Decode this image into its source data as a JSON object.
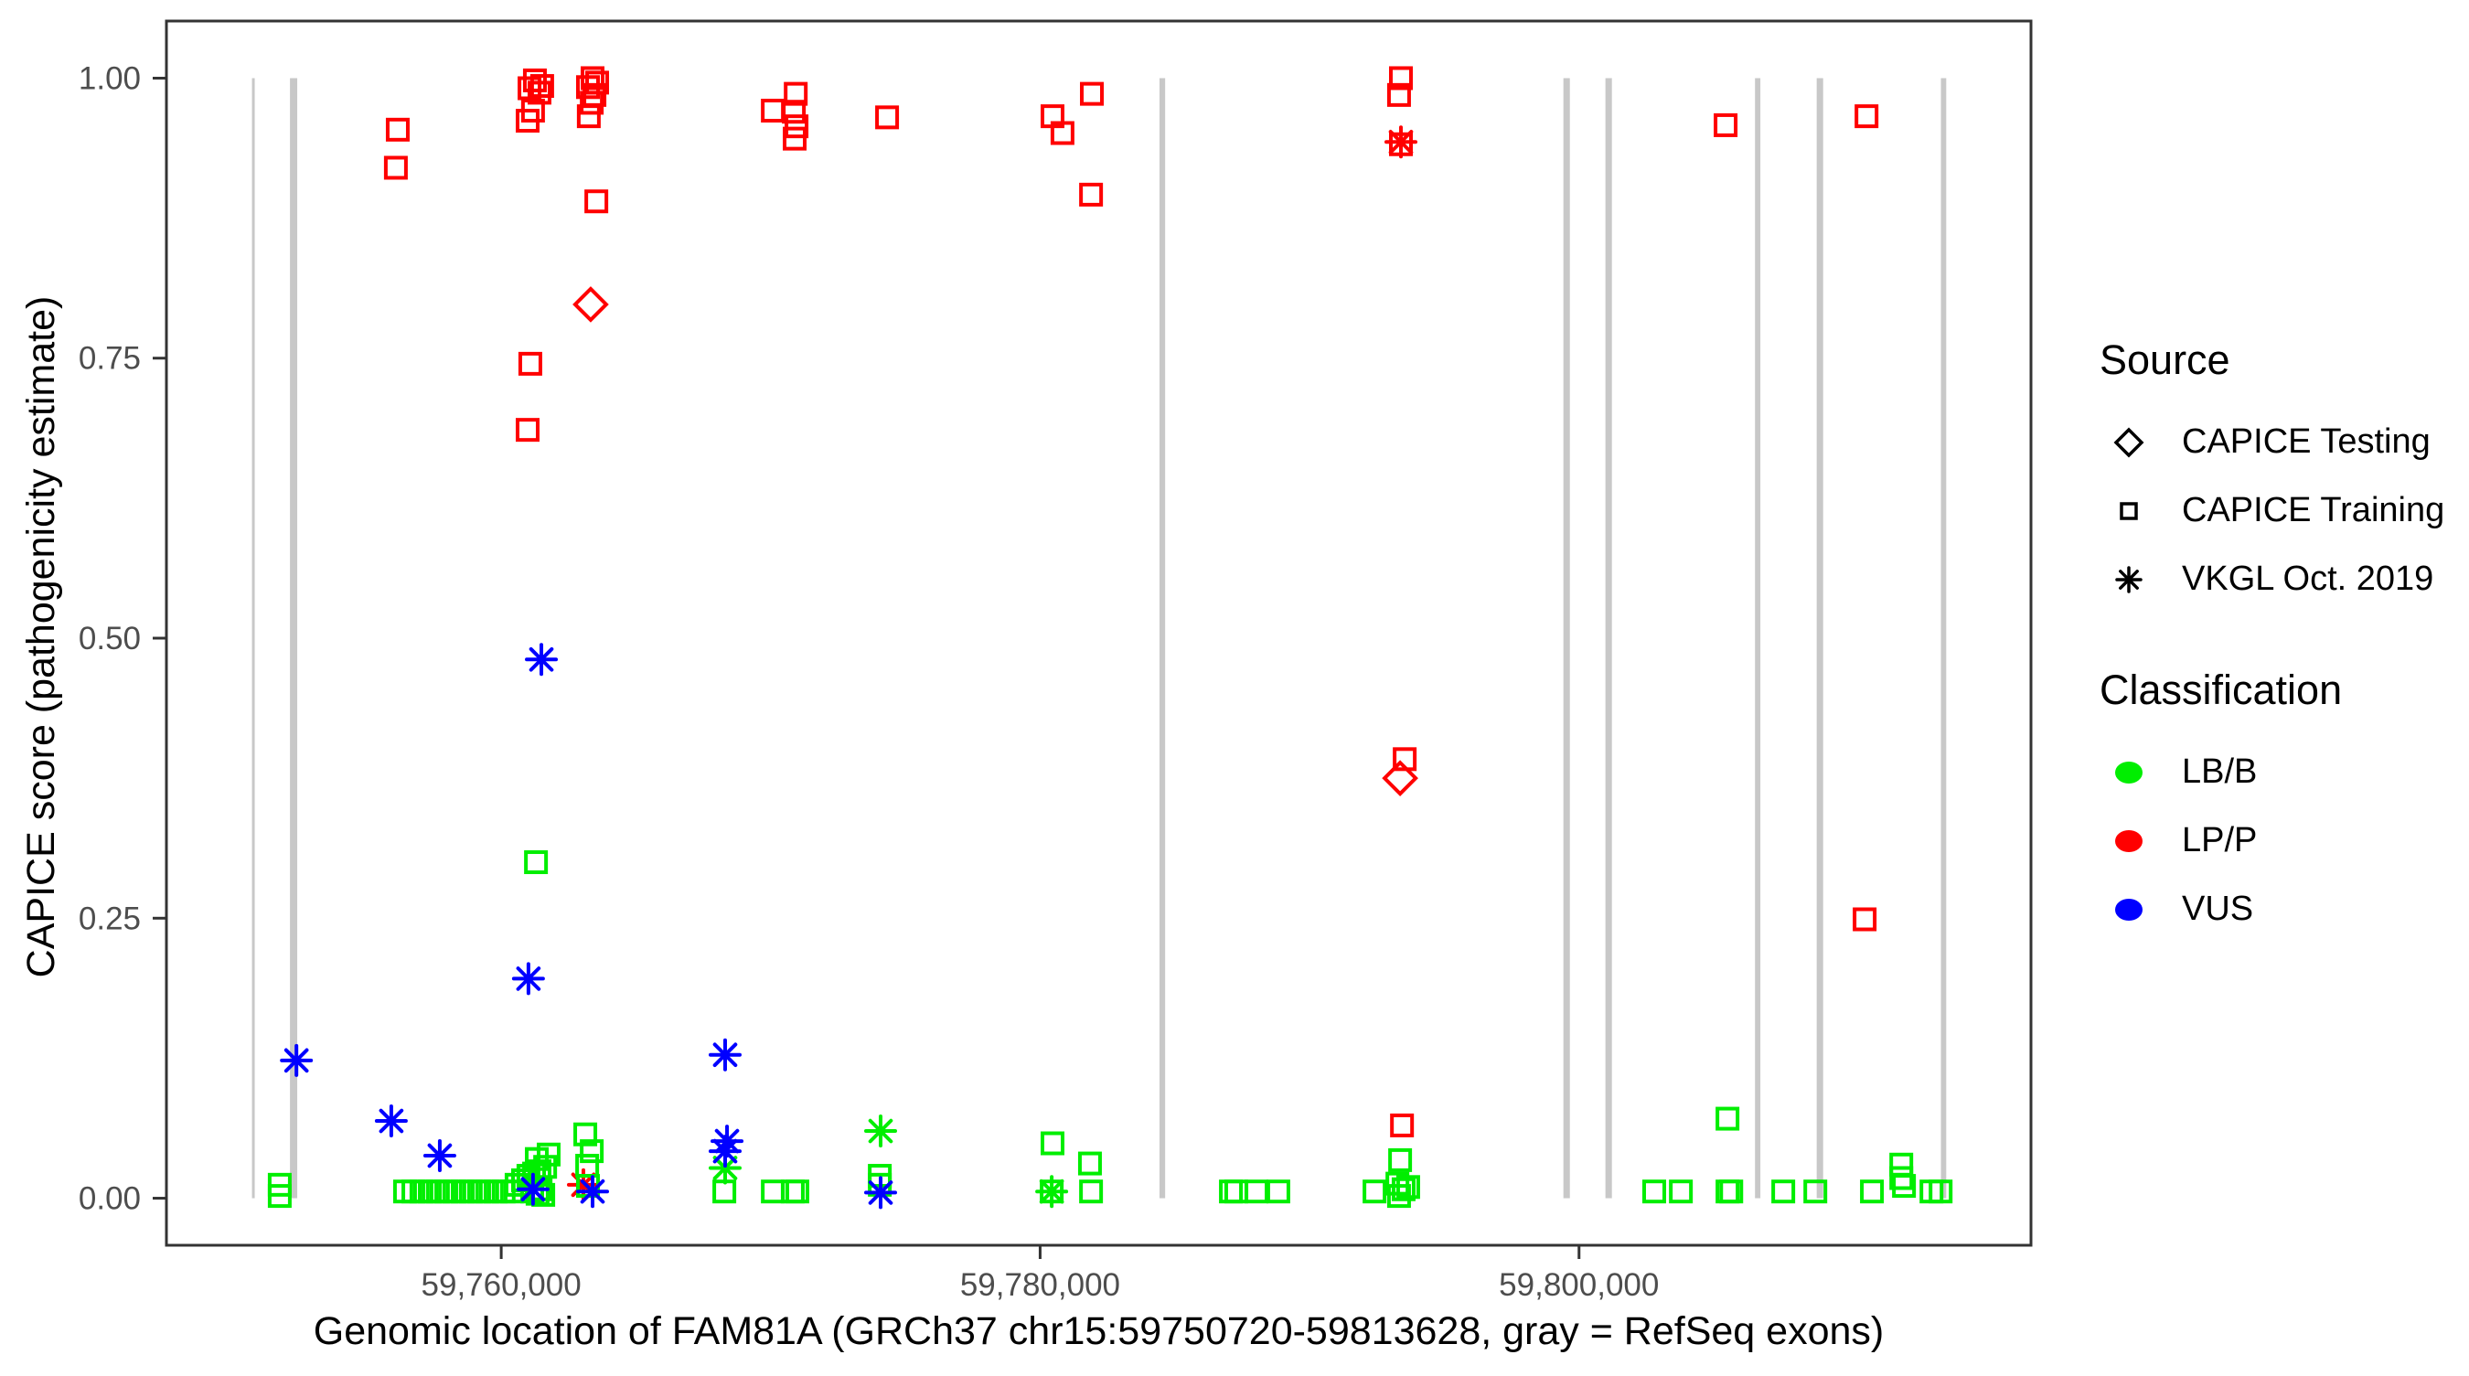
{
  "figure": {
    "xlabel": "Genomic location of FAM81A (GRCh37 chr15:59750720-59813628, gray = RefSeq exons)",
    "ylabel": "CAPICE score (pathogenicity estimate)"
  },
  "legend": {
    "source_title": "Source",
    "source_items": [
      {
        "label": "CAPICE Testing",
        "shape": "diamond",
        "code": "D"
      },
      {
        "label": "CAPICE Training",
        "shape": "square",
        "code": "T"
      },
      {
        "label": "VKGL Oct. 2019",
        "shape": "asterisk",
        "code": "V"
      }
    ],
    "classification_title": "Classification",
    "classification_items": [
      {
        "label": "LB/B",
        "code": "B",
        "color": "#00EE00"
      },
      {
        "label": "LP/P",
        "code": "P",
        "color": "#FF0000"
      },
      {
        "label": "VUS",
        "code": "U",
        "color": "#0000FF"
      }
    ]
  },
  "chart_data": {
    "type": "scatter",
    "title": "",
    "xlabel": "Genomic location of FAM81A (GRCh37 chr15:59750720-59813628, gray = RefSeq exons)",
    "ylabel": "CAPICE score (pathogenicity estimate)",
    "x_axis": {
      "range": [
        59747575,
        59816773
      ],
      "ticks": [
        59760000,
        59780000,
        59800000
      ],
      "tick_labels": [
        "59,760,000",
        "59,780,000",
        "59,800,000"
      ]
    },
    "y_axis": {
      "range": [
        -0.042,
        1.051
      ],
      "ticks": [
        0,
        0.25,
        0.5,
        0.75,
        1
      ],
      "tick_labels": [
        "0.00",
        "0.25",
        "0.50",
        "0.75",
        "1.00"
      ]
    },
    "grid": false,
    "legend_position": "right",
    "exon_color": "#C8C8C8",
    "exon_note": "gray vertical bars = RefSeq exons, drawn spanning score 0 to 1",
    "exons_bp": [
      [
        59750750,
        59750850
      ],
      [
        59752160,
        59752430
      ],
      [
        59784430,
        59784640
      ],
      [
        59799420,
        59799660
      ],
      [
        59800980,
        59801220
      ],
      [
        59806530,
        59806730
      ],
      [
        59808820,
        59809060
      ],
      [
        59813430,
        59813628
      ]
    ],
    "colors": {
      "B": "#00EE00",
      "P": "#FF0000",
      "U": "#0000FF"
    },
    "source_codes": {
      "T": "CAPICE Training",
      "D": "CAPICE Testing",
      "V": "VKGL Oct. 2019"
    },
    "classification_codes": {
      "B": "LB/B",
      "P": "LP/P",
      "U": "VUS"
    },
    "point_columns": [
      "genomic_position_bp",
      "capice_score",
      "source",
      "classification"
    ],
    "points": [
      [
        59756090,
        0.92,
        "T",
        "P"
      ],
      [
        59756160,
        0.954,
        "T",
        "P"
      ],
      [
        59760980,
        0.962,
        "T",
        "P"
      ],
      [
        59760980,
        0.686,
        "T",
        "P"
      ],
      [
        59761050,
        0.991,
        "T",
        "P"
      ],
      [
        59761080,
        0.745,
        "T",
        "P"
      ],
      [
        59761180,
        0.971,
        "T",
        "P"
      ],
      [
        59761250,
        0.998,
        "T",
        "P"
      ],
      [
        59761420,
        0.987,
        "T",
        "P"
      ],
      [
        59761520,
        0.993,
        "T",
        "P"
      ],
      [
        59763220,
        0.992,
        "T",
        "P"
      ],
      [
        59763250,
        0.966,
        "T",
        "P"
      ],
      [
        59763360,
        0.978,
        "T",
        "P"
      ],
      [
        59763390,
        1.0,
        "T",
        "P"
      ],
      [
        59763460,
        0.985,
        "T",
        "P"
      ],
      [
        59763530,
        0.89,
        "T",
        "P"
      ],
      [
        59763560,
        0.996,
        "T",
        "P"
      ],
      [
        59770080,
        0.971,
        "T",
        "P"
      ],
      [
        59770860,
        0.97,
        "T",
        "P"
      ],
      [
        59770890,
        0.946,
        "T",
        "P"
      ],
      [
        59770930,
        0.986,
        "T",
        "P"
      ],
      [
        59770960,
        0.957,
        "T",
        "P"
      ],
      [
        59774320,
        0.965,
        "T",
        "P"
      ],
      [
        59780460,
        0.966,
        "T",
        "P"
      ],
      [
        59780830,
        0.951,
        "T",
        "P"
      ],
      [
        59781890,
        0.896,
        "T",
        "P"
      ],
      [
        59781920,
        0.986,
        "T",
        "P"
      ],
      [
        59793320,
        0.985,
        "T",
        "P"
      ],
      [
        59793390,
        1.0,
        "T",
        "P"
      ],
      [
        59793390,
        0.941,
        "T",
        "P"
      ],
      [
        59793530,
        0.392,
        "T",
        "P"
      ],
      [
        59793430,
        0.065,
        "T",
        "P"
      ],
      [
        59805440,
        0.958,
        "T",
        "P"
      ],
      [
        59810600,
        0.249,
        "T",
        "P"
      ],
      [
        59810670,
        0.966,
        "T",
        "P"
      ],
      [
        59763320,
        0.798,
        "D",
        "P"
      ],
      [
        59793360,
        0.375,
        "D",
        "P"
      ],
      [
        59763050,
        0.012,
        "V",
        "P"
      ],
      [
        59793390,
        0.943,
        "V",
        "P"
      ],
      [
        59751780,
        0.012,
        "T",
        "B"
      ],
      [
        59751780,
        0.002,
        "T",
        "B"
      ],
      [
        59756430,
        0.006,
        "T",
        "B"
      ],
      [
        59756740,
        0.006,
        "T",
        "B"
      ],
      [
        59757040,
        0.006,
        "T",
        "B"
      ],
      [
        59757350,
        0.006,
        "T",
        "B"
      ],
      [
        59757650,
        0.006,
        "T",
        "B"
      ],
      [
        59757960,
        0.006,
        "T",
        "B"
      ],
      [
        59758260,
        0.006,
        "T",
        "B"
      ],
      [
        59758570,
        0.006,
        "T",
        "B"
      ],
      [
        59758870,
        0.006,
        "T",
        "B"
      ],
      [
        59759180,
        0.006,
        "T",
        "B"
      ],
      [
        59759480,
        0.006,
        "T",
        "B"
      ],
      [
        59759790,
        0.006,
        "T",
        "B"
      ],
      [
        59760090,
        0.006,
        "T",
        "B"
      ],
      [
        59760400,
        0.006,
        "T",
        "B"
      ],
      [
        59760570,
        0.012,
        "T",
        "B"
      ],
      [
        59760810,
        0.016,
        "T",
        "B"
      ],
      [
        59761010,
        0.02,
        "T",
        "B"
      ],
      [
        59761150,
        0.006,
        "T",
        "B"
      ],
      [
        59761220,
        0.022,
        "T",
        "B"
      ],
      [
        59761290,
        0.3,
        "T",
        "B"
      ],
      [
        59761320,
        0.035,
        "T",
        "B"
      ],
      [
        59761350,
        0.004,
        "T",
        "B"
      ],
      [
        59761420,
        0.024,
        "T",
        "B"
      ],
      [
        59761460,
        0.008,
        "T",
        "B"
      ],
      [
        59761560,
        0.003,
        "T",
        "B"
      ],
      [
        59761630,
        0.028,
        "T",
        "B"
      ],
      [
        59761760,
        0.039,
        "T",
        "B"
      ],
      [
        59763120,
        0.057,
        "T",
        "B"
      ],
      [
        59763190,
        0.029,
        "T",
        "B"
      ],
      [
        59763220,
        0.011,
        "T",
        "B"
      ],
      [
        59763360,
        0.042,
        "T",
        "B"
      ],
      [
        59768280,
        0.006,
        "T",
        "B"
      ],
      [
        59770080,
        0.006,
        "T",
        "B"
      ],
      [
        59770820,
        0.006,
        "T",
        "B"
      ],
      [
        59770990,
        0.006,
        "T",
        "B"
      ],
      [
        59774050,
        0.02,
        "T",
        "B"
      ],
      [
        59774050,
        0.012,
        "T",
        "B"
      ],
      [
        59780430,
        0.006,
        "T",
        "B"
      ],
      [
        59780460,
        0.049,
        "T",
        "B"
      ],
      [
        59781850,
        0.031,
        "T",
        "B"
      ],
      [
        59781890,
        0.006,
        "T",
        "B"
      ],
      [
        59787080,
        0.006,
        "T",
        "B"
      ],
      [
        59787280,
        0.006,
        "T",
        "B"
      ],
      [
        59788030,
        0.006,
        "T",
        "B"
      ],
      [
        59788840,
        0.006,
        "T",
        "B"
      ],
      [
        59792410,
        0.006,
        "T",
        "B"
      ],
      [
        59793260,
        0.013,
        "T",
        "B"
      ],
      [
        59793320,
        0.002,
        "T",
        "B"
      ],
      [
        59793360,
        0.034,
        "T",
        "B"
      ],
      [
        59793490,
        0.008,
        "T",
        "B"
      ],
      [
        59793660,
        0.01,
        "T",
        "B"
      ],
      [
        59802790,
        0.006,
        "T",
        "B"
      ],
      [
        59803780,
        0.006,
        "T",
        "B"
      ],
      [
        59805510,
        0.071,
        "T",
        "B"
      ],
      [
        59805510,
        0.006,
        "T",
        "B"
      ],
      [
        59805650,
        0.006,
        "T",
        "B"
      ],
      [
        59807580,
        0.006,
        "T",
        "B"
      ],
      [
        59808770,
        0.006,
        "T",
        "B"
      ],
      [
        59810870,
        0.006,
        "T",
        "B"
      ],
      [
        59811960,
        0.03,
        "T",
        "B"
      ],
      [
        59811960,
        0.018,
        "T",
        "B"
      ],
      [
        59812060,
        0.011,
        "T",
        "B"
      ],
      [
        59813080,
        0.006,
        "T",
        "B"
      ],
      [
        59813420,
        0.006,
        "T",
        "B"
      ],
      [
        59768310,
        0.027,
        "V",
        "B"
      ],
      [
        59774080,
        0.06,
        "V",
        "B"
      ],
      [
        59780430,
        0.006,
        "V",
        "B"
      ],
      [
        59752400,
        0.123,
        "V",
        "U"
      ],
      [
        59755920,
        0.069,
        "V",
        "U"
      ],
      [
        59757720,
        0.038,
        "V",
        "U"
      ],
      [
        59761010,
        0.196,
        "V",
        "U"
      ],
      [
        59761180,
        0.008,
        "V",
        "U"
      ],
      [
        59761490,
        0.481,
        "V",
        "U"
      ],
      [
        59763390,
        0.006,
        "V",
        "U"
      ],
      [
        59768310,
        0.128,
        "V",
        "U"
      ],
      [
        59768310,
        0.042,
        "V",
        "U"
      ],
      [
        59768380,
        0.051,
        "V",
        "U"
      ],
      [
        59774080,
        0.005,
        "V",
        "U"
      ]
    ]
  }
}
